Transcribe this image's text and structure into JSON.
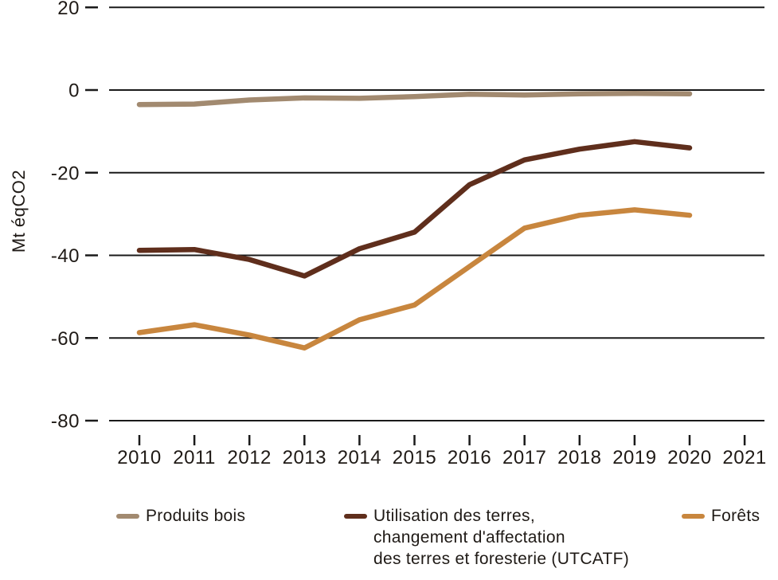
{
  "chart_data": {
    "type": "line",
    "title": "",
    "xlabel": "",
    "ylabel": "Mt éqCO2",
    "x_labels": [
      "2010",
      "2011",
      "2012",
      "2013",
      "2014",
      "2015",
      "2016",
      "2017",
      "2018",
      "2019",
      "2020",
      "2021"
    ],
    "y_ticks": [
      20,
      0,
      -20,
      -40,
      -60,
      -80
    ],
    "ylim": [
      -88,
      22
    ],
    "grid": "horizontal-only",
    "legend_position": "bottom",
    "axis_color": "#1a1a1a",
    "series": [
      {
        "name": "Produits bois",
        "color": "#a28a70",
        "values": [
          -3.5,
          -3.4,
          -2.4,
          -1.9,
          -2.0,
          -1.6,
          -1.0,
          -1.2,
          -0.9,
          -0.8,
          -0.9,
          null
        ]
      },
      {
        "name": "Utilisation des terres, changement d'affectation des terres et foresterie (UTCATF)",
        "color": "#5f2e1c",
        "values": [
          -38.8,
          -38.6,
          -41.0,
          -45.0,
          -38.4,
          -34.4,
          -22.9,
          -16.9,
          -14.3,
          -12.5,
          -14.0,
          null
        ]
      },
      {
        "name": "Forêts",
        "color": "#c8863e",
        "values": [
          -58.7,
          -56.8,
          -59.3,
          -62.4,
          -55.6,
          -52.0,
          -42.7,
          -33.4,
          -30.3,
          -29.0,
          -30.3,
          null
        ]
      }
    ]
  },
  "legend": {
    "items": [
      {
        "label": "Produits bois"
      },
      {
        "label": "Utilisation des terres,\nchangement d'affectation\ndes terres et foresterie (UTCATF)"
      },
      {
        "label": "Forêts"
      }
    ]
  }
}
